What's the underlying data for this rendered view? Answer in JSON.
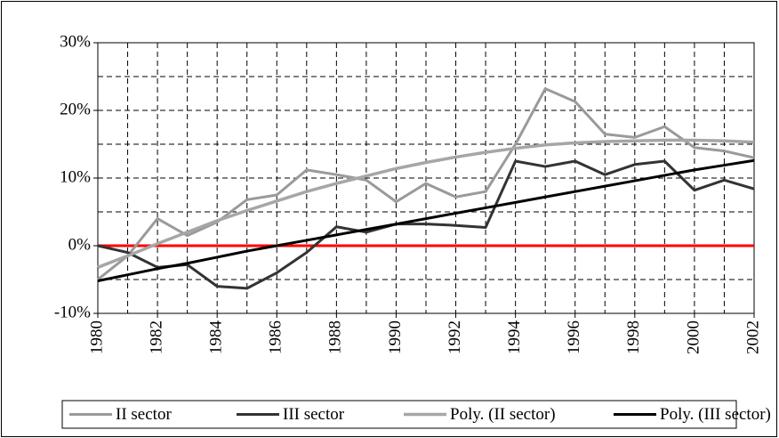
{
  "chart_data": {
    "type": "line",
    "x": [
      1980,
      1981,
      1982,
      1983,
      1984,
      1985,
      1986,
      1987,
      1988,
      1989,
      1990,
      1991,
      1992,
      1993,
      1994,
      1995,
      1996,
      1997,
      1998,
      1999,
      2000,
      2001,
      2002
    ],
    "xlim": [
      1980,
      2002
    ],
    "xticks": [
      1980,
      1982,
      1984,
      1986,
      1988,
      1990,
      1992,
      1994,
      1996,
      1998,
      2000,
      2002
    ],
    "ylim": [
      -10,
      30
    ],
    "yticks": [
      {
        "value": -10,
        "label": "-10%"
      },
      {
        "value": 0,
        "label": "0%"
      },
      {
        "value": 10,
        "label": "10%"
      },
      {
        "value": 20,
        "label": "20%"
      },
      {
        "value": 30,
        "label": "30%"
      }
    ],
    "y_minor_ticks": [
      -5,
      5,
      15,
      25
    ],
    "grid": true,
    "zero_line_color": "#ff0000",
    "legend": "bottom",
    "series": [
      {
        "name": "II sector",
        "color": "#9a9a9a",
        "width": 3,
        "values": [
          -5,
          -1.5,
          4,
          1.5,
          3.5,
          6.8,
          7.5,
          11.2,
          10.5,
          9.7,
          6.5,
          9.2,
          7.2,
          8,
          15,
          23.2,
          21.3,
          16.5,
          16,
          17.6,
          14.5,
          14,
          13
        ]
      },
      {
        "name": "III sector",
        "color": "#333333",
        "width": 3,
        "values": [
          0,
          -1,
          -3.2,
          -2.8,
          -6,
          -6.3,
          -4,
          -1,
          2.8,
          2,
          3.2,
          3.2,
          3,
          2.7,
          12.5,
          11.7,
          12.5,
          10.5,
          12,
          12.5,
          8.2,
          9.7,
          8.4
        ]
      },
      {
        "name": "Poly. (II sector)",
        "color": "#a6a6a6",
        "width": 3.5,
        "values": [
          -3.2,
          -1.5,
          0.3,
          2,
          3.7,
          5.2,
          6.6,
          8,
          9.2,
          10.3,
          11.4,
          12.3,
          13.1,
          13.8,
          14.4,
          14.9,
          15.2,
          15.4,
          15.5,
          15.6,
          15.6,
          15.5,
          15.3
        ]
      },
      {
        "name": "Poly. (III sector)",
        "color": "#000000",
        "width": 3,
        "values": [
          -5.2,
          -4.3,
          -3.4,
          -2.6,
          -1.7,
          -0.8,
          0,
          0.8,
          1.6,
          2.4,
          3.2,
          4,
          4.8,
          5.6,
          6.4,
          7.2,
          8,
          8.8,
          9.6,
          10.4,
          11.2,
          11.9,
          12.6
        ]
      }
    ]
  }
}
